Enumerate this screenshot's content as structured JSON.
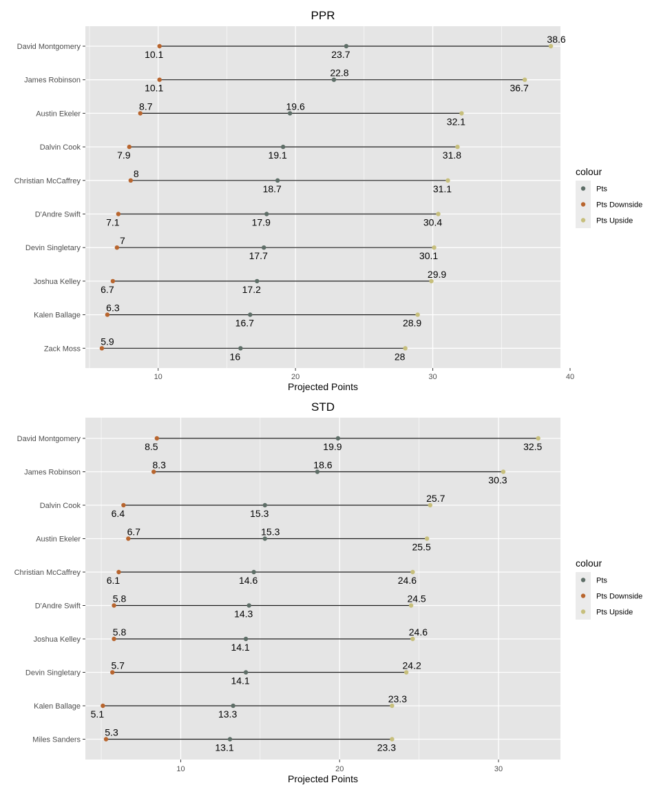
{
  "colors": {
    "panel_bg": "#e5e5e5",
    "grid": "#ffffff",
    "segment": "#1a1a1a",
    "Pts": "#5e6e67",
    "Pts Downside": "#b8652e",
    "Pts Upside": "#c7bf7c",
    "legend_key_bg": "#ebebeb"
  },
  "chart_data": [
    {
      "type": "dumbbell",
      "title": "PPR",
      "xlabel": "Projected Points",
      "ylabel": "",
      "xlim": [
        4.7,
        39.3
      ],
      "xticks": [
        10,
        20,
        30,
        40
      ],
      "grid": true,
      "legend": {
        "title": "colour",
        "entries": [
          "Pts",
          "Pts Downside",
          "Pts Upside"
        ],
        "placement": "right"
      },
      "rows": [
        {
          "player": "David Montgomery",
          "downside": 10.1,
          "pts": 23.7,
          "upside": 38.6
        },
        {
          "player": "James Robinson",
          "downside": 10.1,
          "pts": 22.8,
          "upside": 36.7
        },
        {
          "player": "Austin Ekeler",
          "downside": 8.7,
          "pts": 19.6,
          "upside": 32.1
        },
        {
          "player": "Dalvin Cook",
          "downside": 7.9,
          "pts": 19.1,
          "upside": 31.8
        },
        {
          "player": "Christian McCaffrey",
          "downside": 8,
          "pts": 18.7,
          "upside": 31.1
        },
        {
          "player": "D'Andre Swift",
          "downside": 7.1,
          "pts": 17.9,
          "upside": 30.4
        },
        {
          "player": "Devin Singletary",
          "downside": 7,
          "pts": 17.7,
          "upside": 30.1
        },
        {
          "player": "Joshua Kelley",
          "downside": 6.7,
          "pts": 17.2,
          "upside": 29.9
        },
        {
          "player": "Kalen Ballage",
          "downside": 6.3,
          "pts": 16.7,
          "upside": 28.9
        },
        {
          "player": "Zack Moss",
          "downside": 5.9,
          "pts": 16,
          "upside": 28
        }
      ]
    },
    {
      "type": "dumbbell",
      "title": "STD",
      "xlabel": "Projected Points",
      "ylabel": "",
      "xlim": [
        4.0,
        33.9
      ],
      "xticks": [
        10,
        20,
        30
      ],
      "grid": true,
      "legend": {
        "title": "colour",
        "entries": [
          "Pts",
          "Pts Downside",
          "Pts Upside"
        ],
        "placement": "right"
      },
      "rows": [
        {
          "player": "David Montgomery",
          "downside": 8.5,
          "pts": 19.9,
          "upside": 32.5
        },
        {
          "player": "James Robinson",
          "downside": 8.3,
          "pts": 18.6,
          "upside": 30.3
        },
        {
          "player": "Dalvin Cook",
          "downside": 6.4,
          "pts": 15.3,
          "upside": 25.7
        },
        {
          "player": "Austin Ekeler",
          "downside": 6.7,
          "pts": 15.3,
          "upside": 25.5
        },
        {
          "player": "Christian McCaffrey",
          "downside": 6.1,
          "pts": 14.6,
          "upside": 24.6
        },
        {
          "player": "D'Andre Swift",
          "downside": 5.8,
          "pts": 14.3,
          "upside": 24.5
        },
        {
          "player": "Joshua Kelley",
          "downside": 5.8,
          "pts": 14.1,
          "upside": 24.6
        },
        {
          "player": "Devin Singletary",
          "downside": 5.7,
          "pts": 14.1,
          "upside": 24.2
        },
        {
          "player": "Kalen Ballage",
          "downside": 5.1,
          "pts": 13.3,
          "upside": 23.3
        },
        {
          "player": "Miles Sanders",
          "downside": 5.3,
          "pts": 13.1,
          "upside": 23.3
        }
      ]
    }
  ]
}
